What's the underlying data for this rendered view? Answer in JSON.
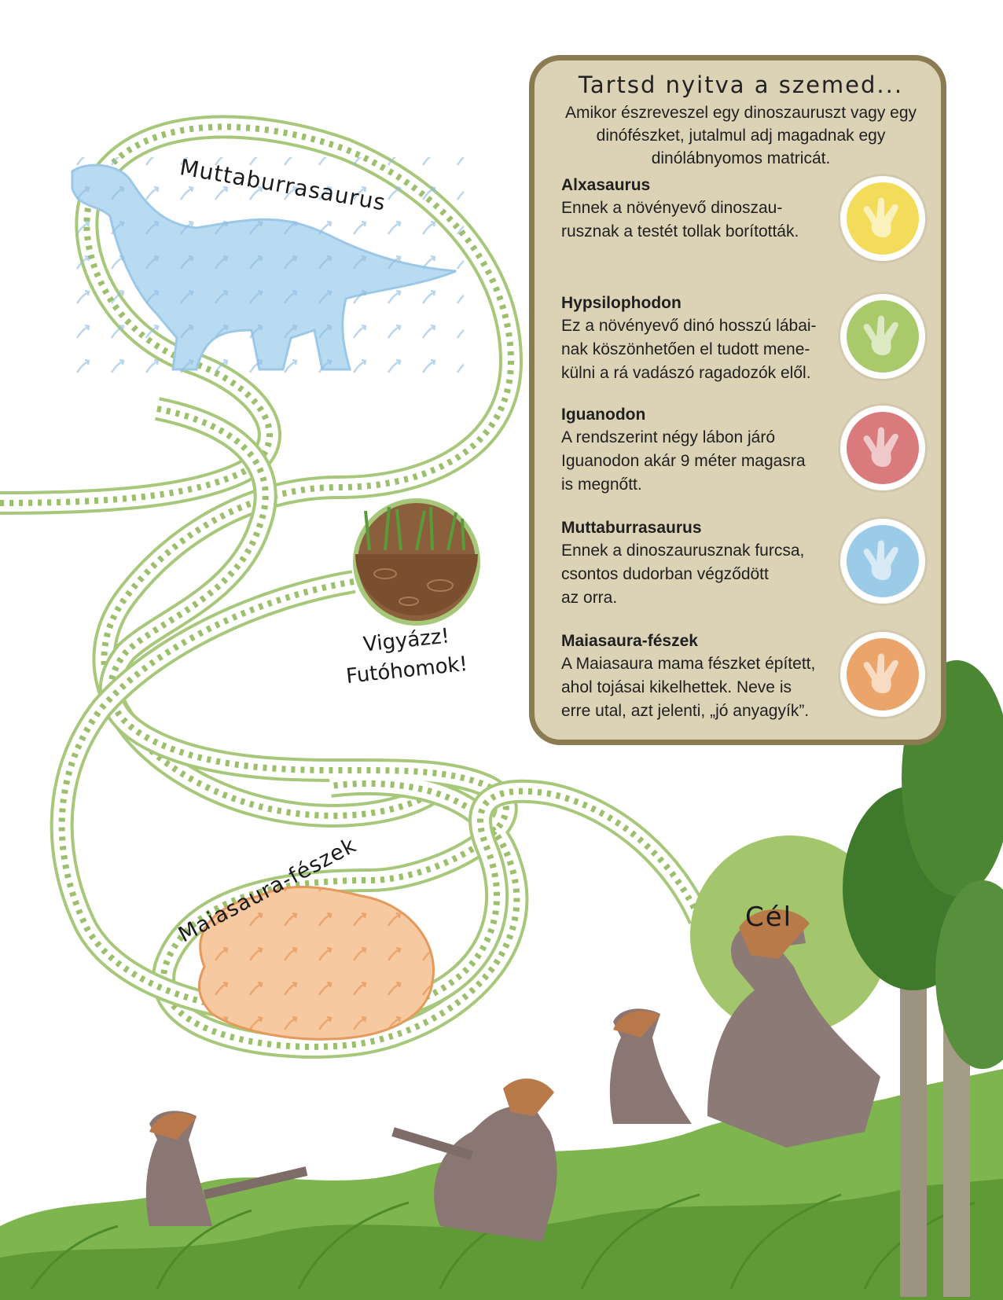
{
  "maze": {
    "muttaburrasaurus_label": "Muttaburrasaurus",
    "warning_line1": "Vigyázz!",
    "warning_line2": "Futóhomok!",
    "nest_label": "Maiasaura-fészek",
    "goal_label": "Cél"
  },
  "info": {
    "title": "Tartsd nyitva a szemed...",
    "intro": "Amikor észreveszel egy dinoszauruszt vagy egy dinófészket, jutalmul adj magadnak egy dinólábnyomos matricát.",
    "entries": [
      {
        "name": "Alxasaurus",
        "lines": [
          "Ennek a növényevő dinoszau-",
          "rusznak a testét tollak borították."
        ],
        "color": "#f2dc5a",
        "icon": "footprint-icon"
      },
      {
        "name": "Hypsilophodon",
        "lines": [
          "Ez a növényevő dinó hosszú lábai-",
          "nak köszönhetően el tudott mene-",
          "külni a rá vadászó ragadozók elől."
        ],
        "color": "#a9c96a",
        "icon": "footprint-icon"
      },
      {
        "name": "Iguanodon",
        "lines": [
          "A rendszerint négy lábon járó",
          "Iguanodon akár 9 méter magasra",
          "is megnőtt."
        ],
        "color": "#d97b7d",
        "icon": "footprint-icon"
      },
      {
        "name": "Muttaburrasaurus",
        "lines": [
          "Ennek a dinoszaurusznak furcsa,",
          "csontos dudorban végződött",
          "az orra."
        ],
        "color": "#9ccbe8",
        "icon": "footprint-icon"
      },
      {
        "name": "Maiasaura-fészek",
        "lines": [
          "A Maiasaura mama fészket épített,",
          "ahol tojásai kikelhettek. Neve is",
          "erre utal, azt jelenti, „jó anyagyík”."
        ],
        "color": "#eba56a",
        "icon": "footprint-icon"
      }
    ]
  },
  "colors": {
    "path": "#a7c87a",
    "path_arrow": "#9bbf6a",
    "box_bg": "#dcd2b6",
    "box_border": "#8a7b53",
    "dino_blue": "#b9dbf2",
    "nest_orange": "#f6c9a0",
    "goal_green": "#a3c56b"
  }
}
